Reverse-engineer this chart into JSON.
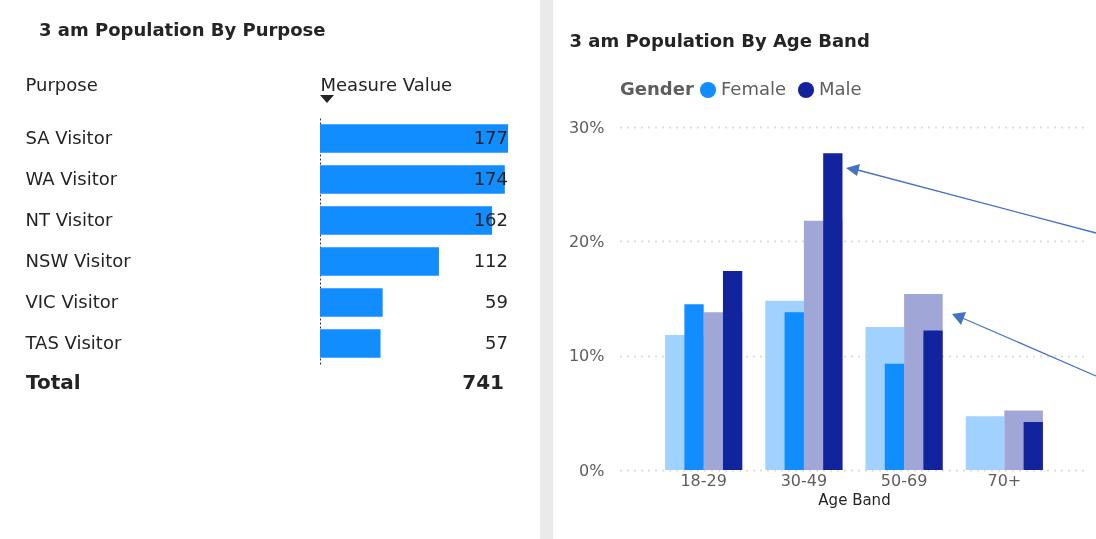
{
  "chart_data": [
    {
      "type": "bar",
      "title": "3 am Population By Purpose",
      "orientation": "horizontal",
      "ylabel": "Purpose",
      "xlabel": "Measure Value",
      "categories": [
        "SA Visitor",
        "WA Visitor",
        "NT Visitor",
        "NSW Visitor",
        "VIC Visitor",
        "TAS Visitor"
      ],
      "values": [
        177,
        174,
        162,
        112,
        59,
        57
      ],
      "color": "#118dff",
      "data_labels": true,
      "tick_labels": "y",
      "grid": false,
      "annotations": [
        "Total",
        "741"
      ]
    },
    {
      "type": "bar",
      "title": "3 am Population By Age Band",
      "xlabel": "Age Band",
      "legend_title": "Gender",
      "legend": "top left",
      "grid": "y",
      "categories": [
        "18-29",
        "30-49",
        "50-69",
        "70+"
      ],
      "series": [
        {
          "color": "#a0d1ff",
          "values": [
            11.8,
            14.8,
            12.5,
            4.7
          ]
        },
        {
          "color": "#a0a6d6",
          "values": [
            13.8,
            21.8,
            15.4,
            5.2
          ]
        },
        {
          "name": "Female",
          "color": "#118dff",
          "values": [
            14.5,
            13.8,
            9.3,
            null
          ]
        },
        {
          "name": "Male",
          "color": "#12239e",
          "values": [
            17.4,
            27.7,
            12.2,
            4.2
          ]
        }
      ],
      "ylim": [
        0,
        30
      ],
      "yticks": [
        {
          "value": 0,
          "label": "0%"
        },
        {
          "value": 10,
          "label": "10%"
        },
        {
          "value": 20,
          "label": "20%"
        },
        {
          "value": 30,
          "label": "30%"
        }
      ]
    }
  ]
}
